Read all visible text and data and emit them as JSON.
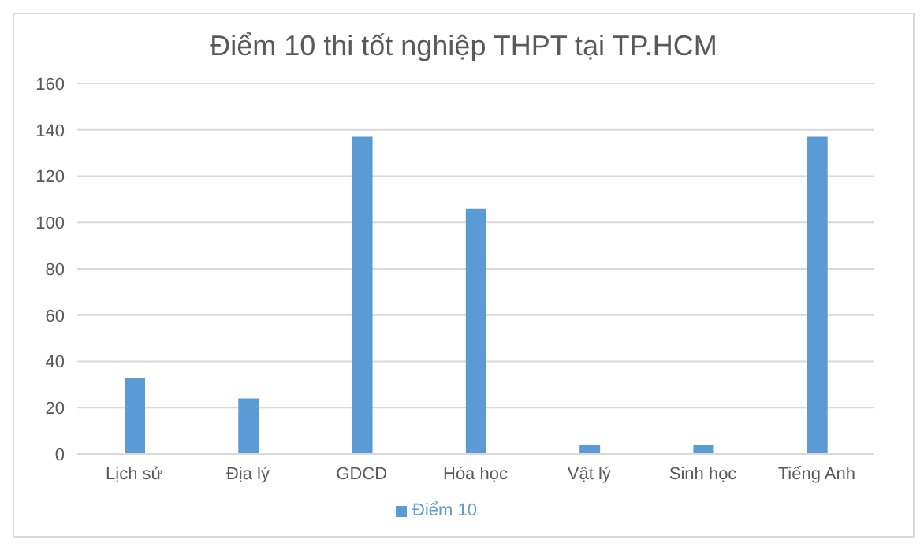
{
  "chart_data": {
    "type": "bar",
    "title": "Điểm 10 thi tốt nghiệp THPT tại TP.HCM",
    "categories": [
      "Lịch sử",
      "Địa lý",
      "GDCD",
      "Hóa học",
      "Vật lý",
      "Sinh học",
      "Tiếng Anh"
    ],
    "series": [
      {
        "name": "Điểm 10",
        "color": "#5b9bd5",
        "values": [
          33,
          24,
          137,
          106,
          4,
          4,
          137
        ]
      }
    ],
    "ylim": [
      0,
      160
    ],
    "yticks": [
      0,
      20,
      40,
      60,
      80,
      100,
      120,
      140,
      160
    ],
    "grid": "y",
    "legend": "bottom"
  }
}
